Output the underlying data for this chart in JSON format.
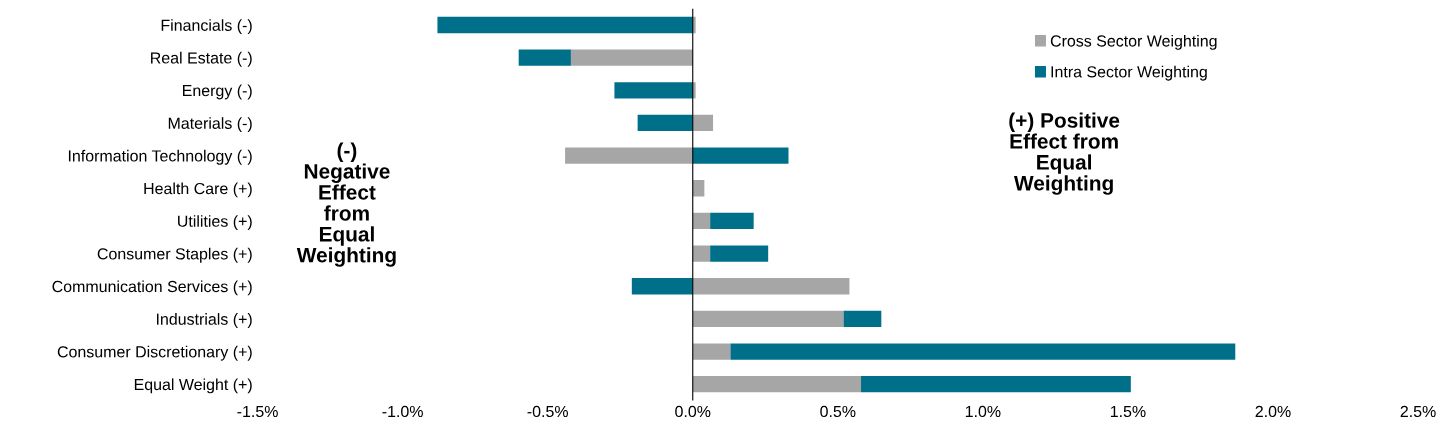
{
  "chart_data": {
    "type": "bar",
    "orientation": "horizontal",
    "stacked": true,
    "categories": [
      "Financials (-)",
      "Real Estate (-)",
      "Energy (-)",
      "Materials (-)",
      "Information Technology (-)",
      "Health Care (+)",
      "Utilities (+)",
      "Consumer Staples (+)",
      "Communication Services (+)",
      "Industrials (+)",
      "Consumer Discretionary (+)",
      "Equal Weight (+)"
    ],
    "series": [
      {
        "name": "Cross Sector Weighting",
        "color": "#a6a6a6",
        "values": [
          0.01,
          -0.42,
          0.01,
          0.07,
          -0.44,
          0.04,
          0.06,
          0.06,
          0.54,
          0.52,
          0.13,
          0.58
        ]
      },
      {
        "name": "Intra Sector Weighting",
        "color": "#00708a",
        "values": [
          -0.88,
          -0.18,
          -0.27,
          -0.19,
          0.33,
          0.0,
          0.15,
          0.2,
          -0.21,
          0.13,
          1.74,
          0.93
        ]
      }
    ],
    "xlim": [
      -1.5,
      2.5
    ],
    "xticks": [
      {
        "value": -1.5,
        "label": "-1.5%"
      },
      {
        "value": -1.0,
        "label": "-1.0%"
      },
      {
        "value": -0.5,
        "label": "-0.5%"
      },
      {
        "value": 0.0,
        "label": "0.0%"
      },
      {
        "value": 0.5,
        "label": "0.5%"
      },
      {
        "value": 1.0,
        "label": "1.0%"
      },
      {
        "value": 1.5,
        "label": "1.5%"
      },
      {
        "value": 2.0,
        "label": "2.0%"
      },
      {
        "value": 2.5,
        "label": "2.5%"
      }
    ],
    "grid": false,
    "legend": "top right",
    "ref_lines": [
      {
        "axis": "x",
        "value": 0.0,
        "color": "#000000"
      }
    ],
    "annotations": [
      "(-)\nNegative\nEffect\nfrom\nEqual\nWeighting",
      "(+) Positive\nEffect from\nEqual\nWeighting"
    ]
  }
}
